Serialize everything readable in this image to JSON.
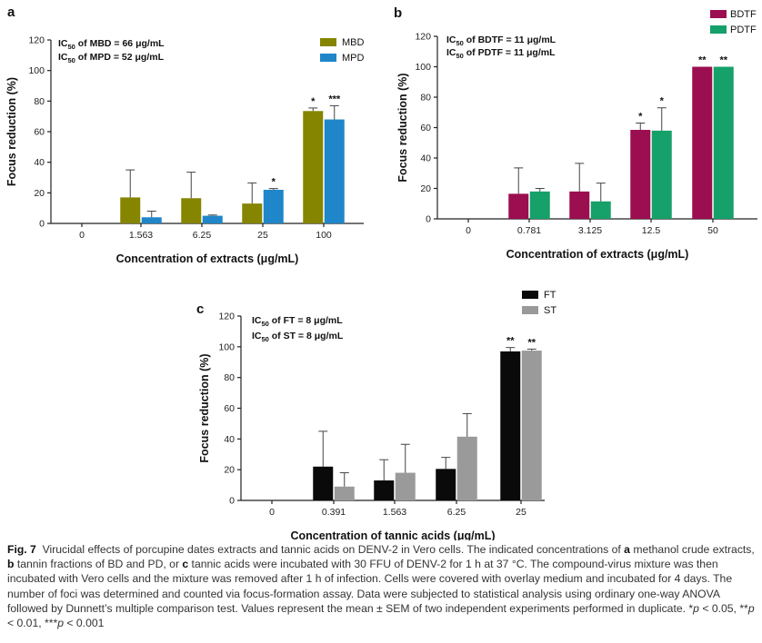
{
  "chart_data": [
    {
      "panel_label": "a",
      "type": "bar",
      "ylabel": "Focus reduction (%)",
      "xlabel": "Concentration of extracts (μg/mL)",
      "ylim": [
        0,
        120
      ],
      "yticks": [
        "0",
        "20",
        "40",
        "60",
        "80",
        "100",
        "120"
      ],
      "categories": [
        "0",
        "1.563",
        "6.25",
        "25",
        "100"
      ],
      "annotations": [
        "IC50 of MBD = 66 μg/mL",
        "IC50 of MPD = 52 μg/mL"
      ],
      "legend_position": "top-right",
      "series": [
        {
          "name": "MBD",
          "color": "#858500",
          "values": [
            0,
            17,
            16.5,
            13,
            73.5
          ],
          "errors": [
            0,
            18,
            17,
            13.5,
            2
          ],
          "significance": [
            "",
            "",
            "",
            "",
            "*"
          ]
        },
        {
          "name": "MPD",
          "color": "#1f86c9",
          "values": [
            0,
            4,
            5,
            22,
            68
          ],
          "errors": [
            0,
            4,
            0.5,
            0.8,
            9
          ],
          "significance": [
            "",
            "",
            "",
            "*",
            "***"
          ]
        }
      ]
    },
    {
      "panel_label": "b",
      "type": "bar",
      "ylabel": "Focus reduction (%)",
      "xlabel": "Concentration of extracts (μg/mL)",
      "ylim": [
        0,
        120
      ],
      "yticks": [
        "0",
        "20",
        "40",
        "60",
        "80",
        "100",
        "120"
      ],
      "categories": [
        "0",
        "0.781",
        "3.125",
        "12.5",
        "50"
      ],
      "annotations": [
        "IC50 of BDTF = 11 μg/mL",
        "IC50 of PDTF = 11 μg/mL"
      ],
      "legend_position": "top-right",
      "series": [
        {
          "name": "BDTF",
          "color": "#9b0e50",
          "values": [
            0,
            16.5,
            18,
            58.5,
            100
          ],
          "errors": [
            0,
            17,
            18.5,
            4.5,
            0
          ],
          "significance": [
            "",
            "",
            "",
            "*",
            "**"
          ]
        },
        {
          "name": "PDTF",
          "color": "#16a06a",
          "values": [
            0,
            18,
            11.5,
            58,
            100
          ],
          "errors": [
            0,
            2,
            12,
            15,
            0
          ],
          "significance": [
            "",
            "",
            "",
            "*",
            "**"
          ]
        }
      ]
    },
    {
      "panel_label": "c",
      "type": "bar",
      "ylabel": "Focus reduction (%)",
      "xlabel": "Concentration of tannic acids (μg/mL)",
      "ylim": [
        0,
        120
      ],
      "yticks": [
        "0",
        "20",
        "40",
        "60",
        "80",
        "100",
        "120"
      ],
      "categories": [
        "0",
        "0.391",
        "1.563",
        "6.25",
        "25"
      ],
      "annotations": [
        "IC50 of FT = 8 μg/mL",
        "IC50 of ST = 8 μg/mL"
      ],
      "legend_position": "top-right",
      "series": [
        {
          "name": "FT",
          "color": "#0a0a0a",
          "values": [
            0,
            22,
            13,
            20.5,
            97
          ],
          "errors": [
            0,
            23,
            13.5,
            7.5,
            2.5
          ],
          "significance": [
            "",
            "",
            "",
            "",
            "**"
          ]
        },
        {
          "name": "ST",
          "color": "#9a9a9a",
          "values": [
            0,
            9,
            18,
            41.5,
            97.5
          ],
          "errors": [
            0,
            9,
            18.5,
            15,
            1
          ],
          "significance": [
            "",
            "",
            "",
            "",
            "**"
          ]
        }
      ]
    }
  ],
  "caption": {
    "fig_label": "Fig. 7",
    "text_1": "Virucidal effects of porcupine dates extracts and tannic acids on DENV-2 in Vero cells. The indicated concentrations of ",
    "bold_a": "a",
    "text_2": " methanol crude extracts, ",
    "bold_b": "b",
    "text_3": " tannin fractions of BD and PD, or ",
    "bold_c": "c",
    "text_4": " tannic acids were incubated with 30 FFU of DENV-2 for 1 h at 37 °C. The compound-virus mixture was then incubated with Vero cells and the mixture was removed after 1 h of infection. Cells were covered with overlay medium and incubated for 4 days. The number of foci was determined and counted via focus-formation assay. Data were subjected to statistical analysis using ordinary one-way ANOVA followed by Dunnett’s multiple comparison test. Values represent the mean ± SEM of two independent experiments performed in duplicate. *",
    "p1": "p",
    "text_5": " < 0.05, **",
    "p2": "p",
    "text_6": " < 0.01, ***",
    "p3": "p",
    "text_7": " < 0.001"
  }
}
